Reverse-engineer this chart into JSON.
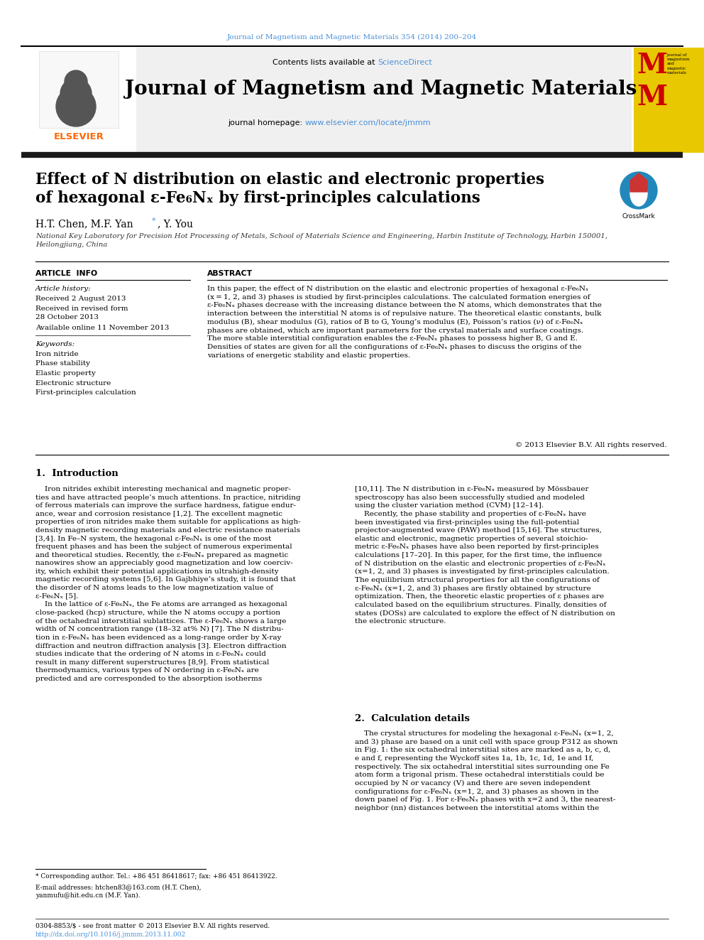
{
  "journal_ref": "Journal of Magnetism and Magnetic Materials 354 (2014) 200–204",
  "journal_title": "Journal of Magnetism and Magnetic Materials",
  "contents_line": "Contents lists available at ScienceDirect",
  "journal_homepage": "journal homepage: www.elsevier.com/locate/jmmm",
  "paper_title_line1": "Effect of N distribution on elastic and electronic properties",
  "paper_title_line2": "of hexagonal ε-Fe₆Nₓ by first-principles calculations",
  "authors_pre": "H.T. Chen, M.F. Yan ",
  "authors_star": "*",
  "authors_post": ", Y. You",
  "affiliation": "National Key Laboratory for Precision Hot Processing of Metals, School of Materials Science and Engineering, Harbin Institute of Technology, Harbin 150001,\nHeilongjiang, China",
  "article_info_title": "ARTICLE  INFO",
  "article_history_label": "Article history:",
  "received": "Received 2 August 2013",
  "received_revised": "Received in revised form\n28 October 2013",
  "available_online": "Available online 11 November 2013",
  "keywords_label": "Keywords:",
  "keywords": [
    "Iron nitride",
    "Phase stability",
    "Elastic property",
    "Electronic structure",
    "First-principles calculation"
  ],
  "abstract_title": "ABSTRACT",
  "abstract_text": "In this paper, the effect of N distribution on the elastic and electronic properties of hexagonal ε-Fe₆Nₓ\n(x = 1, 2, and 3) phases is studied by first-principles calculations. The calculated formation energies of\nε-Fe₆Nₓ phases decrease with the increasing distance between the N atoms, which demonstrates that the\ninteraction between the interstitial N atoms is of repulsive nature. The theoretical elastic constants, bulk\nmodulus (B), shear modulus (G), ratios of B to G, Young’s modulus (E), Poisson’s ratios (ν) of ε-Fe₆Nₓ\nphases are obtained, which are important parameters for the crystal materials and surface coatings.\nThe more stable interstitial configuration enables the ε-Fe₆Nₓ phases to possess higher B, G and E.\nDensities of states are given for all the configurations of ε-Fe₆Nₓ phases to discuss the origins of the\nvariations of energetic stability and elastic properties.",
  "copyright": "© 2013 Elsevier B.V. All rights reserved.",
  "section1_title": "1.  Introduction",
  "intro_left": "    Iron nitrides exhibit interesting mechanical and magnetic proper-\nties and have attracted people’s much attentions. In practice, nitriding\nof ferrous materials can improve the surface hardness, fatigue endur-\nance, wear and corrosion resistance [1,2]. The excellent magnetic\nproperties of iron nitrides make them suitable for applications as high-\ndensity magnetic recording materials and electric resistance materials\n[3,4]. In Fe–N system, the hexagonal ε-Fe₆Nₓ is one of the most\nfrequent phases and has been the subject of numerous experimental\nand theoretical studies. Recently, the ε-Fe₆Nₓ prepared as magnetic\nnanowires show an appreciably good magnetization and low coerciv-\nity, which exhibit their potential applications in ultrahigh-density\nmagnetic recording systems [5,6]. In Gajbhiye’s study, it is found that\nthe disorder of N atoms leads to the low magnetization value of\nε-Fe₆Nₓ [5].\n    In the lattice of ε-Fe₆Nₓ, the Fe atoms are arranged as hexagonal\nclose-packed (hcp) structure, while the N atoms occupy a portion\nof the octahedral interstitial sublattices. The ε-Fe₆Nₓ shows a large\nwidth of N concentration range (18–32 at% N) [7]. The N distribu-\ntion in ε-Fe₆Nₓ has been evidenced as a long-range order by X-ray\ndiffraction and neutron diffraction analysis [3]. Electron diffraction\nstudies indicate that the ordering of N atoms in ε-Fe₆Nₓ could\nresult in many different superstructures [8,9]. From statistical\nthermodynamics, various types of N ordering in ε-Fe₆Nₓ are\npredicted and are corresponded to the absorption isotherms",
  "intro_right": "[10,11]. The N distribution in ε-Fe₆Nₓ measured by Mössbauer\nspectroscopy has also been successfully studied and modeled\nusing the cluster variation method (CVM) [12–14].\n    Recently, the phase stability and properties of ε-Fe₆Nₓ have\nbeen investigated via first-principles using the full-potential\nprojector-augmented wave (PAW) method [15,16]. The structures,\nelastic and electronic, magnetic properties of several stoichio-\nmetric ε-Fe₆Nₓ phases have also been reported by first-principles\ncalculations [17–20]. In this paper, for the first time, the influence\nof N distribution on the elastic and electronic properties of ε-Fe₆Nₓ\n(x=1, 2, and 3) phases is investigated by first-principles calculation.\nThe equilibrium structural properties for all the configurations of\nε-Fe₆Nₓ (x=1, 2, and 3) phases are firstly obtained by structure\noptimization. Then, the theoretic elastic properties of ε phases are\ncalculated based on the equilibrium structures. Finally, densities of\nstates (DOSs) are calculated to explore the effect of N distribution on\nthe electronic structure.",
  "section2_title": "2.  Calculation details",
  "calc_right": "    The crystal structures for modeling the hexagonal ε-Fe₆Nₓ (x=1, 2,\nand 3) phase are based on a unit cell with space group P312 as shown\nin Fig. 1: the six octahedral interstitial sites are marked as a, b, c, d,\ne and f, representing the Wyckoff sites 1a, 1b, 1c, 1d, 1e and 1f,\nrespectively. The six octahedral interstitial sites surrounding one Fe\natom form a trigonal prism. These octahedral interstitials could be\noccupied by N or vacancy (V) and there are seven independent\nconfigurations for ε-Fe₆Nₓ (x=1, 2, and 3) phases as shown in the\ndown panel of Fig. 1. For ε-Fe₆Nₓ phases with x=2 and 3, the nearest-\nneighbor (nn) distances between the interstitial atoms within the",
  "footnote_line1": "* Corresponding author. Tel.: +86 451 86418617; fax: +86 451 86413922.",
  "footnote_email": "E-mail addresses: htchen83@163.com (H.T. Chen),\nyanmufu@hit.edu.cn (M.F. Yan).",
  "footer_line1": "0304-8853/$ - see front matter © 2013 Elsevier B.V. All rights reserved.",
  "footer_line2": "http://dx.doi.org/10.1016/j.jmmm.2013.11.002",
  "bg_header_color": "#f0f0f0",
  "link_color": "#4a90d9",
  "elsevier_orange": "#FF6600",
  "black": "#000000",
  "dark_gray": "#333333",
  "light_gray": "#e8e8e8",
  "header_bar_color": "#1a1a1a"
}
